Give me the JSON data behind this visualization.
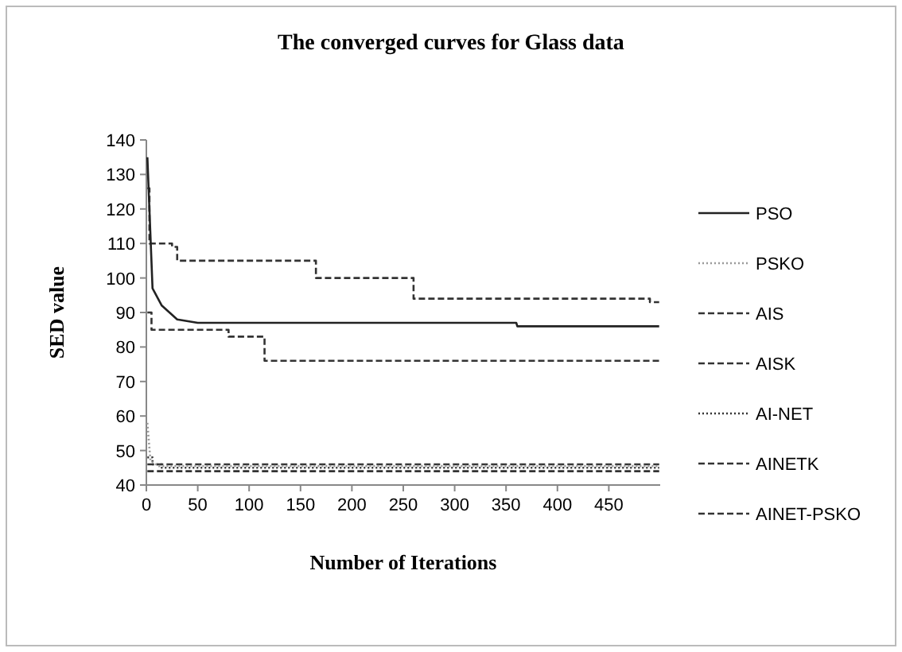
{
  "chart_data": {
    "type": "line",
    "title": "The converged curves for Glass data",
    "xlabel": "Number of Iterations",
    "ylabel": "SED value",
    "xlim": [
      0,
      500
    ],
    "xticks": [
      0,
      50,
      100,
      150,
      200,
      250,
      300,
      350,
      400,
      450
    ],
    "ylim": [
      40,
      140
    ],
    "yticks": [
      40,
      50,
      60,
      70,
      80,
      90,
      100,
      110,
      120,
      130,
      140
    ],
    "grid": false,
    "legend": "right",
    "marker": "none",
    "series": [
      {
        "name": "PSO",
        "color": "#222222",
        "line_style": "solid",
        "x": [
          1,
          6,
          15,
          30,
          50,
          360,
          361,
          499
        ],
        "values": [
          135,
          97,
          92,
          88,
          87,
          87,
          86,
          86
        ]
      },
      {
        "name": "PSKO",
        "color": "#999999",
        "line_style": "dotted",
        "x": [
          1,
          4,
          12,
          499
        ],
        "values": [
          58,
          47,
          45.5,
          45.5
        ]
      },
      {
        "name": "AIS",
        "type": "step",
        "color": "#333333",
        "line_style": "dashed",
        "x": [
          1,
          3,
          25,
          30,
          165,
          260,
          490,
          499
        ],
        "values": [
          126,
          110,
          109,
          105,
          100,
          94,
          93,
          93
        ]
      },
      {
        "name": "AISK",
        "type": "step",
        "color": "#333333",
        "line_style": "dashed",
        "x": [
          1,
          5,
          80,
          115,
          499
        ],
        "values": [
          90,
          85,
          83,
          76,
          76
        ]
      },
      {
        "name": "AI-NET",
        "type": "step",
        "color": "#333333",
        "line_style": "dotted",
        "x": [
          1,
          6,
          15,
          499
        ],
        "values": [
          48,
          46,
          45,
          45
        ]
      },
      {
        "name": "AINETK",
        "color": "#333333",
        "line_style": "dashed",
        "x": [
          1,
          499
        ],
        "values": [
          44,
          44
        ]
      },
      {
        "name": "AINET-PSKO",
        "color": "#333333",
        "line_style": "dashed",
        "x": [
          1,
          499
        ],
        "values": [
          46,
          46
        ]
      }
    ]
  }
}
